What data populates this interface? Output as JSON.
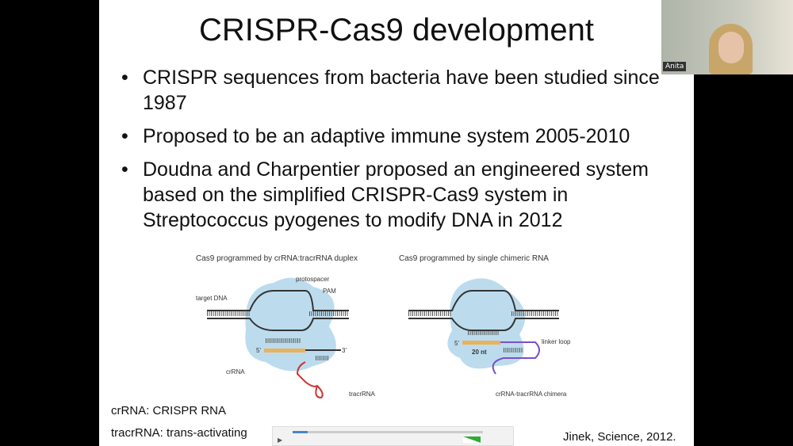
{
  "slide": {
    "title": "CRISPR-Cas9 development",
    "bullets": [
      "CRISPR sequences from bacteria have been studied since 1987",
      "Proposed to be an adaptive immune system 2005-2010",
      "Doudna and Charpentier proposed an engineered system based on the simplified CRISPR-Cas9 system in Streptococcus pyogenes to modify DNA in 2012"
    ],
    "figure": {
      "left_title": "Cas9 programmed by crRNA:tracrRNA duplex",
      "right_title": "Cas9 programmed by single chimeric RNA",
      "labels": {
        "protospacer": "protospacer",
        "pam": "PAM",
        "target_dna": "target DNA",
        "crrna": "crRNA",
        "tracrrna": "tracrRNA",
        "five": "5'",
        "three": "3'",
        "nt": "20 nt",
        "linker": "linker loop",
        "chimera": "crRNA-tracrRNA chimera"
      }
    },
    "notes": {
      "crrna": "crRNA: CRISPR RNA",
      "tracrrna": "tracrRNA: trans-activating",
      "citation": "Jinek, Science, 2012."
    }
  },
  "webcam": {
    "name": "Anita"
  },
  "player": {
    "progress": 0.04,
    "volume": 0.8
  }
}
